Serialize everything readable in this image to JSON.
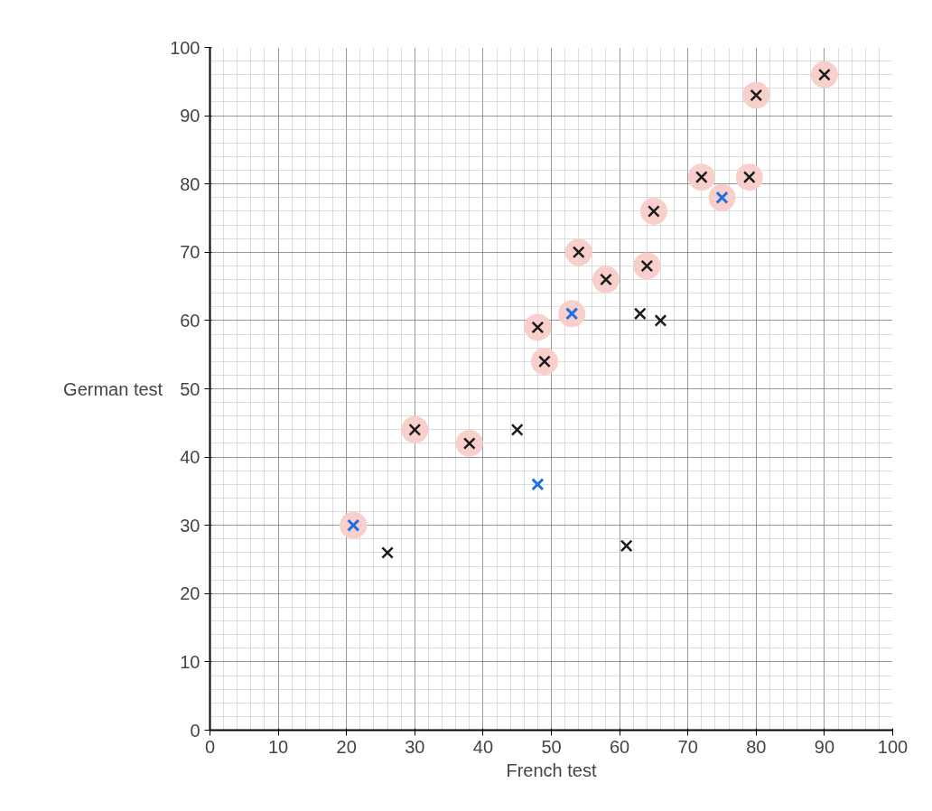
{
  "chart_data": {
    "type": "scatter",
    "xlabel": "French test",
    "ylabel": "German test",
    "xlim": [
      0,
      100
    ],
    "ylim": [
      0,
      100
    ],
    "xticks": [
      0,
      10,
      20,
      30,
      40,
      50,
      60,
      70,
      80,
      90,
      100
    ],
    "yticks": [
      0,
      10,
      20,
      30,
      40,
      50,
      60,
      70,
      80,
      90,
      100
    ],
    "grid": true,
    "series": [
      {
        "color": "#f8cfcb",
        "marker": "circle",
        "x": [
          21,
          30,
          38,
          48,
          49,
          53,
          54,
          58,
          64,
          65,
          72,
          75,
          79,
          80,
          90
        ],
        "values": [
          30,
          44,
          42,
          59,
          54,
          61,
          70,
          66,
          68,
          76,
          81,
          78,
          81,
          93,
          96
        ]
      },
      {
        "color": "#1a1a1a",
        "marker": "cross",
        "x": [
          26,
          30,
          38,
          45,
          48,
          49,
          54,
          58,
          61,
          63,
          64,
          65,
          66,
          72,
          79,
          80,
          90
        ],
        "values": [
          26,
          44,
          42,
          44,
          59,
          54,
          70,
          66,
          27,
          61,
          68,
          76,
          60,
          81,
          81,
          93,
          96
        ]
      },
      {
        "color": "#1f6fe0",
        "marker": "cross",
        "x": [
          21,
          48,
          53,
          75
        ],
        "values": [
          30,
          36,
          61,
          78
        ]
      }
    ]
  }
}
